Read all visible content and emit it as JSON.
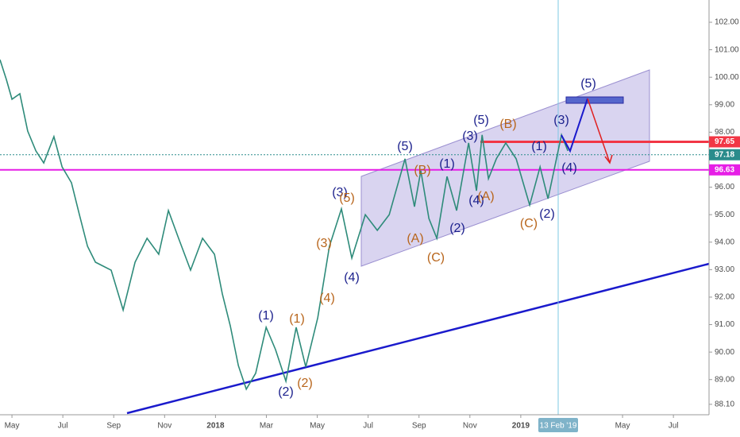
{
  "chart_data": {
    "type": "line",
    "x": [
      3.53,
      3.78,
      4,
      4.31,
      4.62,
      4.94,
      5.25,
      5.65,
      5.97,
      6.34,
      6.65,
      6.97,
      7.28,
      7.9,
      8.37,
      8.84,
      9.31,
      9.77,
      10.15,
      10.55,
      11.02,
      11.49,
      11.96,
      12.27,
      12.58,
      12.9,
      13.21,
      13.58,
      13.99,
      14.36,
      14.77,
      15.17,
      15.55,
      16.02,
      16.48,
      16.95,
      17.36,
      17.89,
      18.36,
      18.83,
      19.45,
      19.82,
      20.07,
      20.39,
      20.7,
      21.1,
      21.48,
      21.95,
      22.26,
      22.48,
      22.73,
      23.04,
      23.41,
      23.82,
      24.35,
      24.76,
      25.07,
      25.6,
      25.85
    ],
    "series": [
      {
        "color": "#2e8b7a",
        "values": [
          100.64,
          99.92,
          99.2,
          99.4,
          98.04,
          97.32,
          96.88,
          97.84,
          96.74,
          96.16,
          95.0,
          93.85,
          93.27,
          92.98,
          91.53,
          93.27,
          94.14,
          93.56,
          95.15,
          94.14,
          92.98,
          94.14,
          93.56,
          92.12,
          90.96,
          89.51,
          88.65,
          89.23,
          90.9,
          90.09,
          88.94,
          90.9,
          89.46,
          91.25,
          93.85,
          95.21,
          93.42,
          95.0,
          94.43,
          95.0,
          97.03,
          95.29,
          96.6,
          94.86,
          94.14,
          96.39,
          95.15,
          97.61,
          95.87,
          97.9,
          96.31,
          97.03,
          97.61,
          97.03,
          95.35,
          96.74,
          95.58,
          97.9,
          97.32
        ]
      }
    ],
    "xlim": [
      3.53,
      31.4
    ],
    "ylim": [
      87.72,
      102.81
    ],
    "xticks": [
      {
        "value": 4,
        "label": "May"
      },
      {
        "value": 6,
        "label": "Jul"
      },
      {
        "value": 8,
        "label": "Sep"
      },
      {
        "value": 10,
        "label": "Nov"
      },
      {
        "value": 12,
        "label": "2018"
      },
      {
        "value": 14,
        "label": "Mar"
      },
      {
        "value": 16,
        "label": "May"
      },
      {
        "value": 18,
        "label": "Jul"
      },
      {
        "value": 20,
        "label": "Sep"
      },
      {
        "value": 22,
        "label": "Nov"
      },
      {
        "value": 24,
        "label": "2019"
      },
      {
        "value": 28,
        "label": "May"
      },
      {
        "value": 30,
        "label": "Jul"
      }
    ],
    "yticks": [
      {
        "value": 102,
        "label": "102.00"
      },
      {
        "value": 101,
        "label": "101.00"
      },
      {
        "value": 100,
        "label": "100.00"
      },
      {
        "value": 99,
        "label": "99.00"
      },
      {
        "value": 98,
        "label": "98.00"
      },
      {
        "value": 96,
        "label": "96.00"
      },
      {
        "value": 95,
        "label": "95.00"
      },
      {
        "value": 94,
        "label": "94.00"
      },
      {
        "value": 93,
        "label": "93.00"
      },
      {
        "value": 92,
        "label": "92.00"
      },
      {
        "value": 91,
        "label": "91.00"
      },
      {
        "value": 90,
        "label": "90.00"
      },
      {
        "value": 89,
        "label": "89.00"
      },
      {
        "value": 88.1,
        "label": "88.10"
      }
    ],
    "price_lines": [
      {
        "value": 97.65,
        "color": "#f23645"
      },
      {
        "value": 97.18,
        "color": "#2a8c8c"
      },
      {
        "value": 96.63,
        "color": "#e61ee6"
      }
    ],
    "cursor_label": "13 Feb '19",
    "annotations": [
      {
        "text": "(1)",
        "color": "#1a1f8c"
      },
      {
        "text": "(2)",
        "color": "#1a1f8c"
      },
      {
        "text": "(3)",
        "color": "#1a1f8c"
      },
      {
        "text": "(4)",
        "color": "#1a1f8c"
      },
      {
        "text": "(5)",
        "color": "#1a1f8c"
      },
      {
        "text": "(1)",
        "color": "#1a1f8c"
      },
      {
        "text": "(2)",
        "color": "#1a1f8c"
      },
      {
        "text": "(3)",
        "color": "#1a1f8c"
      },
      {
        "text": "(4)",
        "color": "#1a1f8c"
      },
      {
        "text": "(5)",
        "color": "#1a1f8c"
      },
      {
        "text": "(1)",
        "color": "#1a1f8c"
      },
      {
        "text": "(2)",
        "color": "#1a1f8c"
      },
      {
        "text": "(3)",
        "color": "#1a1f8c"
      },
      {
        "text": "(4)",
        "color": "#1a1f8c"
      },
      {
        "text": "(5)",
        "color": "#1a1f8c"
      },
      {
        "text": "(1)",
        "color": "#b8651b"
      },
      {
        "text": "(2)",
        "color": "#b8651b"
      },
      {
        "text": "(3)",
        "color": "#b8651b"
      },
      {
        "text": "(4)",
        "color": "#b8651b"
      },
      {
        "text": "(5)",
        "color": "#b8651b"
      },
      {
        "text": "(B)",
        "color": "#b8651b"
      },
      {
        "text": "(A)",
        "color": "#b8651b"
      },
      {
        "text": "(C)",
        "color": "#b8651b"
      },
      {
        "text": "(A)",
        "color": "#b8651b"
      },
      {
        "text": "(B)",
        "color": "#b8651b"
      },
      {
        "text": "(C)",
        "color": "#b8651b"
      }
    ]
  }
}
